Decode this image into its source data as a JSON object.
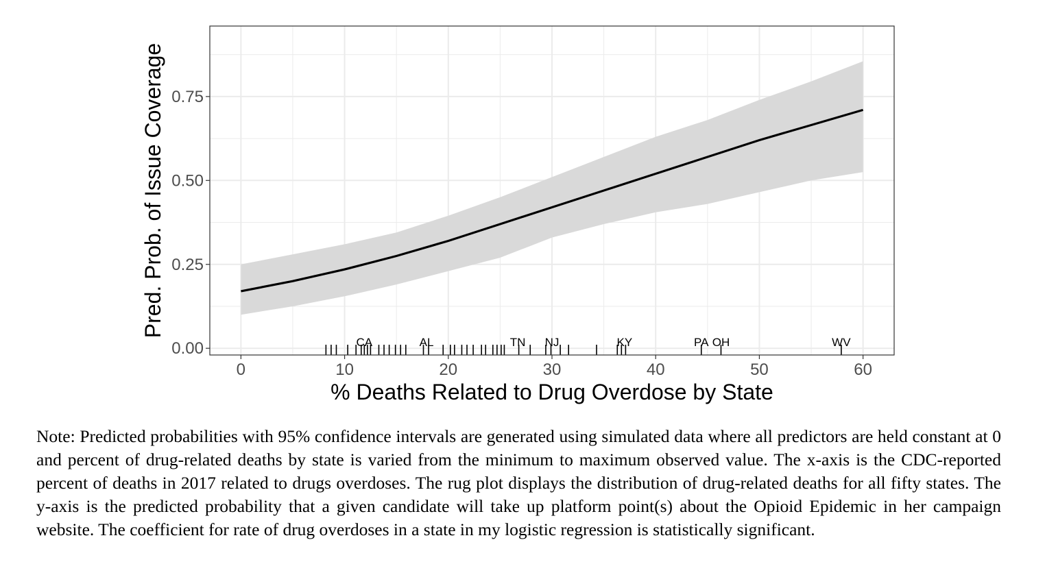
{
  "chart_data": {
    "type": "line",
    "title": "",
    "xlabel": "% Deaths Related to Drug Overdose by State",
    "ylabel": "Pred. Prob. of Issue Coverage",
    "xlim": [
      -3,
      63
    ],
    "ylim": [
      -0.02,
      0.96
    ],
    "x_ticks": [
      0,
      10,
      20,
      30,
      40,
      50,
      60
    ],
    "x_tick_labels": [
      "0",
      "10",
      "20",
      "30",
      "40",
      "50",
      "60"
    ],
    "y_ticks": [
      0.0,
      0.25,
      0.5,
      0.75
    ],
    "y_tick_labels": [
      "0.00",
      "0.25",
      "0.50",
      "0.75"
    ],
    "grid": true,
    "legend": "none",
    "series": [
      {
        "x": [
          0,
          5,
          10,
          15,
          20,
          25,
          30,
          35,
          40,
          45,
          50,
          55,
          60
        ],
        "y": [
          0.17,
          0.2,
          0.235,
          0.275,
          0.32,
          0.37,
          0.42,
          0.47,
          0.52,
          0.57,
          0.62,
          0.665,
          0.71
        ],
        "ci_lower": [
          0.1,
          0.125,
          0.155,
          0.19,
          0.23,
          0.27,
          0.33,
          0.37,
          0.405,
          0.43,
          0.465,
          0.5,
          0.525
        ],
        "ci_upper": [
          0.25,
          0.28,
          0.31,
          0.345,
          0.395,
          0.45,
          0.51,
          0.57,
          0.63,
          0.68,
          0.74,
          0.795,
          0.855
        ]
      }
    ],
    "rug": [
      8.2,
      8.7,
      9.2,
      10.3,
      11.1,
      11.6,
      11.9,
      12.2,
      12.5,
      13.3,
      13.8,
      14.3,
      14.9,
      15.4,
      15.9,
      17.6,
      18.1,
      19.5,
      20.2,
      20.6,
      21.3,
      21.8,
      22.4,
      23.2,
      23.6,
      24.3,
      24.7,
      25.1,
      25.4,
      26.8,
      27.9,
      29.4,
      29.9,
      30.8,
      31.6,
      34.3,
      36.3,
      36.7,
      37.1,
      44.4,
      46.3,
      57.9
    ],
    "rug_labels": [
      {
        "text": "CA",
        "x": 11.9
      },
      {
        "text": "AL",
        "x": 17.9
      },
      {
        "text": "TN",
        "x": 26.7
      },
      {
        "text": "NJ",
        "x": 30.0
      },
      {
        "text": "KY",
        "x": 37.0
      },
      {
        "text": "PA",
        "x": 44.4
      },
      {
        "text": "OH",
        "x": 46.3
      },
      {
        "text": "WV",
        "x": 57.9
      }
    ]
  },
  "note": "Note: Predicted probabilities with 95% confidence intervals are generated using simulated data where all predictors are held constant at 0 and percent of drug-related deaths by state is varied from the minimum to maximum observed value. The x-axis is the CDC-reported percent of deaths in 2017 related to drugs overdoses. The rug plot displays the distribution of drug-related deaths for all fifty states. The y-axis is the predicted probability that a given candidate will take up platform point(s) about the Opioid Epidemic in her campaign website. The coefficient for rate of drug overdoses in a state in my logistic regression is statistically significant.",
  "colors": {
    "line": "#000000",
    "ribbon": "#d9d9d9",
    "grid": "#ebebeb",
    "panel_border": "#333333"
  }
}
